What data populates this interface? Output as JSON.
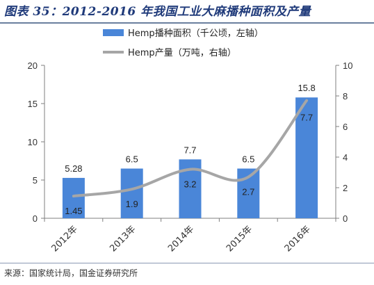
{
  "title": "图表 35：2012-2016 年我国工业大麻播种面积及产量",
  "source": "来源：国家统计局，国金证券研究所",
  "chart_data": {
    "type": "bar",
    "categories": [
      "2012年",
      "2013年",
      "2014年",
      "2015年",
      "2016年"
    ],
    "series": [
      {
        "name": "Hemp播种面积（千公顷，左轴）",
        "type": "bar",
        "axis": "left",
        "values": [
          5.28,
          6.5,
          7.7,
          6.5,
          15.8
        ],
        "labels": [
          "5.28",
          "6.5",
          "7.7",
          "6.5",
          "15.8"
        ],
        "color": "#4a86d8"
      },
      {
        "name": "Hemp产量（万吨，右轴）",
        "type": "line",
        "axis": "right",
        "smooth": true,
        "values": [
          1.45,
          1.9,
          3.2,
          2.7,
          7.7
        ],
        "labels": [
          "1.45",
          "1.9",
          "3.2",
          "2.7",
          "7.7"
        ],
        "color": "#a6a6a6"
      }
    ],
    "y_left": {
      "ylim": [
        0,
        20
      ],
      "ticks": [
        "0",
        "5",
        "10",
        "15",
        "20"
      ]
    },
    "y_right": {
      "ylim": [
        0,
        10
      ],
      "ticks": [
        "0",
        "2",
        "4",
        "6",
        "8",
        "10"
      ]
    },
    "legend_position": "top-center",
    "grid": false
  }
}
